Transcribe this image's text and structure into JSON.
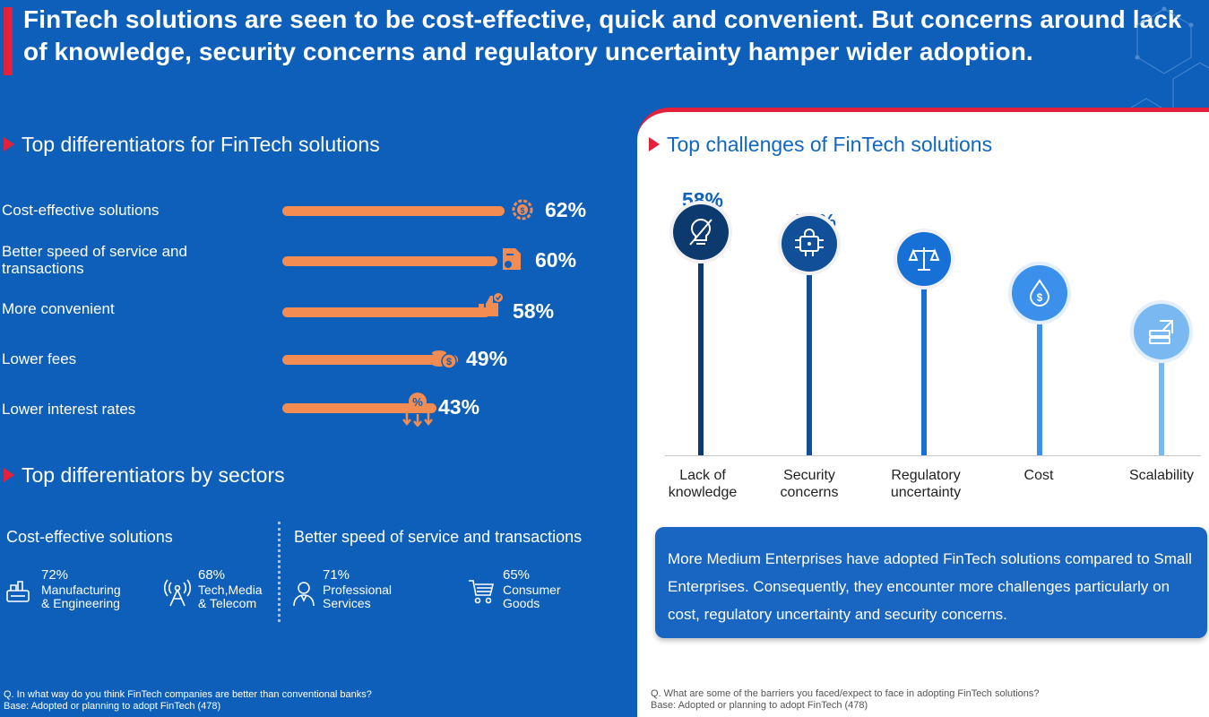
{
  "headline": "FinTech solutions are seen to be cost-effective, quick and convenient. But concerns around lack of knowledge, security concerns and regulatory uncertainty hamper wider adoption.",
  "differentiators": {
    "title": "Top differentiators for FinTech solutions",
    "items": [
      {
        "label": "Cost-effective solutions",
        "pct": "62%",
        "value": 62,
        "icon": "gear-dollar-icon"
      },
      {
        "label": "Better speed of service and transactions",
        "pct": "60%",
        "value": 60,
        "icon": "document-clock-icon"
      },
      {
        "label": "More convenient",
        "pct": "58%",
        "value": 58,
        "icon": "thumbs-up-check-icon"
      },
      {
        "label": "Lower fees",
        "pct": "49%",
        "value": 49,
        "icon": "coins-dollar-icon"
      },
      {
        "label": "Lower interest rates",
        "pct": "43%",
        "value": 43,
        "icon": "percent-down-arrows-icon"
      }
    ]
  },
  "sectors": {
    "title": "Top differentiators by sectors",
    "cost_head": "Cost-effective solutions",
    "speed_head": "Better speed of service and transactions",
    "items": [
      {
        "pct": "72%",
        "name1": "Manufacturing",
        "name2": "& Engineering",
        "icon": "factory-icon"
      },
      {
        "pct": "68%",
        "name1": "Tech,Media",
        "name2": "& Telecom",
        "icon": "antenna-icon"
      },
      {
        "pct": "71%",
        "name1": "Professional",
        "name2": "Services",
        "icon": "person-icon"
      },
      {
        "pct": "65%",
        "name1": "Consumer",
        "name2": "Goods",
        "icon": "shopping-cart-icon"
      }
    ]
  },
  "left_footnote": {
    "q": "Q. In what way do you think FinTech companies are better than conventional banks?",
    "base": "Base: Adopted or planning to adopt FinTech (478)"
  },
  "challenges": {
    "title": "Top challenges of FinTech solutions",
    "items": [
      {
        "pct": "58%",
        "value": 58,
        "label1": "Lack of",
        "label2": "knowledge",
        "color": "#0d3a6e",
        "icon": "lightbulb-slash-icon"
      },
      {
        "pct": "55%",
        "value": 55,
        "label1": "Security",
        "label2": "concerns",
        "color": "#114f99",
        "icon": "chip-lock-icon"
      },
      {
        "pct": "51%",
        "value": 51,
        "label1": "Regulatory",
        "label2": "uncertainty",
        "color": "#1670d6",
        "icon": "scales-icon"
      },
      {
        "pct": "42%",
        "value": 42,
        "label1": "Cost",
        "label2": "",
        "color": "#3a90ea",
        "icon": "drop-dollar-icon"
      },
      {
        "pct": "32%",
        "value": 32,
        "label1": "Scalability",
        "label2": "",
        "color": "#7ab8f2",
        "icon": "server-arrow-icon"
      }
    ]
  },
  "callout": "More Medium Enterprises have adopted FinTech solutions compared to Small Enterprises. Consequently, they encounter more challenges particularly on cost, regulatory uncertainty and security concerns.",
  "right_footnote": {
    "q": "Q. What are some of the barriers you faced/expect to face in adopting FinTech solutions?",
    "base": "Base: Adopted or planning to adopt FinTech (478)"
  }
}
